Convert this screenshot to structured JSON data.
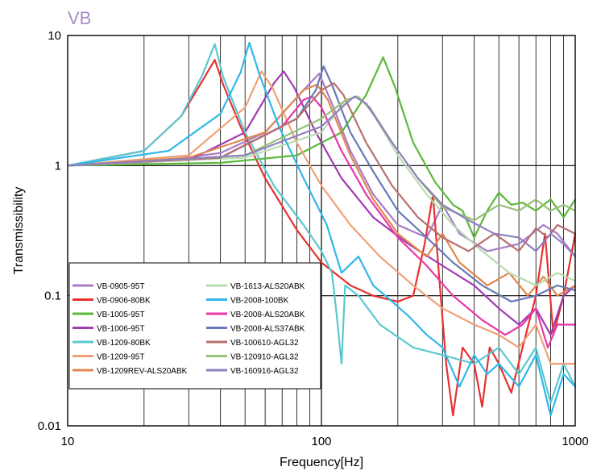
{
  "chart_data": {
    "type": "line",
    "title": "VB",
    "xlabel": "Frequency[Hz]",
    "ylabel": "Transmissibility",
    "x_scale": "log",
    "y_scale": "log",
    "xlim": [
      10,
      1000
    ],
    "ylim": [
      0.01,
      10
    ],
    "x_ticks": [
      "10",
      "100",
      "1000"
    ],
    "y_ticks": [
      "0.01",
      "0.1",
      "1",
      "10"
    ],
    "grid": true,
    "legend_position": "bottom-left",
    "series": [
      {
        "name": "VB-0905-95T",
        "color": "#a87cc8",
        "points": [
          [
            10,
            1
          ],
          [
            20,
            1.05
          ],
          [
            40,
            1.25
          ],
          [
            60,
            1.8
          ],
          [
            85,
            3.8
          ],
          [
            98,
            5.1
          ],
          [
            110,
            3
          ],
          [
            130,
            1.3
          ],
          [
            160,
            0.6
          ],
          [
            200,
            0.35
          ],
          [
            260,
            0.28
          ],
          [
            300,
            0.5
          ],
          [
            350,
            0.3
          ],
          [
            450,
            0.22
          ],
          [
            600,
            0.25
          ],
          [
            750,
            0.35
          ],
          [
            850,
            0.3
          ],
          [
            1000,
            0.2
          ]
        ]
      },
      {
        "name": "VB-0906-80BK",
        "color": "#e83030",
        "points": [
          [
            10,
            1
          ],
          [
            20,
            1.3
          ],
          [
            28,
            2.4
          ],
          [
            34,
            4.5
          ],
          [
            38,
            6.5
          ],
          [
            41,
            4.2
          ],
          [
            48,
            2
          ],
          [
            60,
            0.8
          ],
          [
            80,
            0.32
          ],
          [
            100,
            0.18
          ],
          [
            130,
            0.12
          ],
          [
            160,
            0.1
          ],
          [
            200,
            0.09
          ],
          [
            230,
            0.1
          ],
          [
            255,
            0.25
          ],
          [
            275,
            0.6
          ],
          [
            290,
            0.15
          ],
          [
            310,
            0.03
          ],
          [
            330,
            0.012
          ],
          [
            360,
            0.04
          ],
          [
            400,
            0.03
          ],
          [
            430,
            0.014
          ],
          [
            460,
            0.04
          ],
          [
            500,
            0.03
          ],
          [
            560,
            0.018
          ],
          [
            620,
            0.04
          ],
          [
            700,
            0.1
          ],
          [
            760,
            0.3
          ],
          [
            820,
            0.05
          ],
          [
            900,
            0.1
          ],
          [
            1000,
            0.3
          ]
        ]
      },
      {
        "name": "VB-1005-95T",
        "color": "#5cb83a",
        "points": [
          [
            10,
            1
          ],
          [
            40,
            1.05
          ],
          [
            80,
            1.2
          ],
          [
            120,
            1.8
          ],
          [
            150,
            3.5
          ],
          [
            175,
            6.8
          ],
          [
            195,
            4
          ],
          [
            230,
            1.5
          ],
          [
            280,
            0.75
          ],
          [
            330,
            0.5
          ],
          [
            360,
            0.45
          ],
          [
            400,
            0.28
          ],
          [
            450,
            0.45
          ],
          [
            500,
            0.62
          ],
          [
            560,
            0.5
          ],
          [
            620,
            0.52
          ],
          [
            700,
            0.45
          ],
          [
            800,
            0.55
          ],
          [
            900,
            0.4
          ],
          [
            1000,
            0.55
          ]
        ]
      },
      {
        "name": "VB-1006-95T",
        "color": "#a03cb0",
        "points": [
          [
            10,
            1
          ],
          [
            30,
            1.1
          ],
          [
            50,
            1.8
          ],
          [
            65,
            4.3
          ],
          [
            71,
            5.3
          ],
          [
            78,
            4
          ],
          [
            95,
            1.8
          ],
          [
            120,
            0.8
          ],
          [
            160,
            0.4
          ],
          [
            220,
            0.25
          ],
          [
            300,
            0.17
          ],
          [
            400,
            0.12
          ],
          [
            500,
            0.08
          ],
          [
            600,
            0.06
          ],
          [
            700,
            0.08
          ],
          [
            800,
            0.05
          ],
          [
            900,
            0.1
          ],
          [
            1000,
            0.12
          ]
        ]
      },
      {
        "name": "VB-1209-80BK",
        "color": "#5ac8d0",
        "points": [
          [
            10,
            1
          ],
          [
            20,
            1.3
          ],
          [
            28,
            2.4
          ],
          [
            34,
            5
          ],
          [
            38,
            8.6
          ],
          [
            41,
            4.8
          ],
          [
            50,
            1.8
          ],
          [
            65,
            0.7
          ],
          [
            85,
            0.35
          ],
          [
            100,
            0.22
          ],
          [
            110,
            0.15
          ],
          [
            115,
            0.07
          ],
          [
            120,
            0.03
          ],
          [
            124,
            0.12
          ],
          [
            140,
            0.1
          ],
          [
            170,
            0.06
          ],
          [
            230,
            0.04
          ],
          [
            300,
            0.035
          ],
          [
            400,
            0.03
          ],
          [
            500,
            0.04
          ],
          [
            600,
            0.025
          ],
          [
            700,
            0.04
          ],
          [
            800,
            0.015
          ],
          [
            900,
            0.03
          ],
          [
            1000,
            0.02
          ]
        ]
      },
      {
        "name": "VB-1209-95T",
        "color": "#f0a078",
        "points": [
          [
            10,
            1
          ],
          [
            30,
            1.2
          ],
          [
            50,
            2.8
          ],
          [
            58,
            5.3
          ],
          [
            64,
            4
          ],
          [
            80,
            1.5
          ],
          [
            100,
            0.7
          ],
          [
            130,
            0.35
          ],
          [
            170,
            0.2
          ],
          [
            230,
            0.12
          ],
          [
            300,
            0.08
          ],
          [
            400,
            0.06
          ],
          [
            500,
            0.05
          ],
          [
            600,
            0.04
          ],
          [
            700,
            0.06
          ],
          [
            800,
            0.03
          ],
          [
            1000,
            0.03
          ]
        ]
      },
      {
        "name": "VB-1209REV-ALS20ABK",
        "color": "#e08850",
        "points": [
          [
            10,
            1
          ],
          [
            30,
            1.15
          ],
          [
            60,
            1.8
          ],
          [
            85,
            3.8
          ],
          [
            96,
            4.2
          ],
          [
            106,
            3.2
          ],
          [
            130,
            1.2
          ],
          [
            160,
            0.55
          ],
          [
            200,
            0.3
          ],
          [
            260,
            0.2
          ],
          [
            300,
            0.3
          ],
          [
            350,
            0.18
          ],
          [
            450,
            0.12
          ],
          [
            550,
            0.15
          ],
          [
            650,
            0.1
          ],
          [
            750,
            0.14
          ],
          [
            850,
            0.1
          ],
          [
            1000,
            0.12
          ]
        ]
      },
      {
        "name": "VB-1613-ALS20ABK",
        "color": "#b8dcb0",
        "points": [
          [
            10,
            1
          ],
          [
            50,
            1.15
          ],
          [
            100,
            1.8
          ],
          [
            125,
            3.2
          ],
          [
            140,
            3.4
          ],
          [
            160,
            2.5
          ],
          [
            200,
            1.2
          ],
          [
            260,
            0.6
          ],
          [
            330,
            0.35
          ],
          [
            430,
            0.22
          ],
          [
            550,
            0.15
          ],
          [
            700,
            0.12
          ],
          [
            850,
            0.15
          ],
          [
            1000,
            0.13
          ]
        ]
      },
      {
        "name": "VB-2008-100BK",
        "color": "#30b8e8",
        "points": [
          [
            10,
            1
          ],
          [
            25,
            1.3
          ],
          [
            40,
            2.5
          ],
          [
            48,
            5.2
          ],
          [
            52,
            8.8
          ],
          [
            57,
            5
          ],
          [
            68,
            2
          ],
          [
            85,
            0.8
          ],
          [
            105,
            0.35
          ],
          [
            120,
            0.15
          ],
          [
            140,
            0.2
          ],
          [
            160,
            0.12
          ],
          [
            190,
            0.09
          ],
          [
            220,
            0.07
          ],
          [
            260,
            0.05
          ],
          [
            300,
            0.04
          ],
          [
            350,
            0.02
          ],
          [
            400,
            0.035
          ],
          [
            450,
            0.025
          ],
          [
            500,
            0.03
          ],
          [
            600,
            0.02
          ],
          [
            700,
            0.035
          ],
          [
            800,
            0.012
          ],
          [
            900,
            0.025
          ],
          [
            1000,
            0.02
          ]
        ]
      },
      {
        "name": "VB-2008-ALS20ABK",
        "color": "#e838a8",
        "points": [
          [
            10,
            1
          ],
          [
            40,
            1.15
          ],
          [
            70,
            2
          ],
          [
            85,
            3.2
          ],
          [
            92,
            3.4
          ],
          [
            100,
            2.8
          ],
          [
            120,
            1.3
          ],
          [
            150,
            0.6
          ],
          [
            200,
            0.28
          ],
          [
            260,
            0.17
          ],
          [
            330,
            0.1
          ],
          [
            430,
            0.065
          ],
          [
            530,
            0.05
          ],
          [
            620,
            0.06
          ],
          [
            700,
            0.08
          ],
          [
            780,
            0.04
          ],
          [
            850,
            0.06
          ],
          [
            1000,
            0.06
          ]
        ]
      },
      {
        "name": "VB-2008-ALS37ABK",
        "color": "#6878b8",
        "points": [
          [
            10,
            1
          ],
          [
            40,
            1.15
          ],
          [
            80,
            2.3
          ],
          [
            95,
            3.8
          ],
          [
            102,
            5.8
          ],
          [
            110,
            4.2
          ],
          [
            130,
            1.8
          ],
          [
            160,
            0.9
          ],
          [
            200,
            0.45
          ],
          [
            260,
            0.28
          ],
          [
            330,
            0.18
          ],
          [
            430,
            0.12
          ],
          [
            560,
            0.09
          ],
          [
            700,
            0.1
          ],
          [
            850,
            0.12
          ],
          [
            1000,
            0.11
          ]
        ]
      },
      {
        "name": "VB-100610-AGL32",
        "color": "#b87070",
        "points": [
          [
            10,
            1
          ],
          [
            40,
            1.15
          ],
          [
            80,
            2.3
          ],
          [
            100,
            3.8
          ],
          [
            112,
            4.3
          ],
          [
            122,
            3.5
          ],
          [
            150,
            1.5
          ],
          [
            190,
            0.7
          ],
          [
            240,
            0.4
          ],
          [
            300,
            0.28
          ],
          [
            380,
            0.22
          ],
          [
            480,
            0.3
          ],
          [
            600,
            0.22
          ],
          [
            700,
            0.33
          ],
          [
            780,
            0.28
          ],
          [
            850,
            0.35
          ],
          [
            1000,
            0.3
          ]
        ]
      },
      {
        "name": "VB-120910-AGL32",
        "color": "#98c078",
        "points": [
          [
            10,
            1
          ],
          [
            50,
            1.2
          ],
          [
            100,
            2.3
          ],
          [
            125,
            3.2
          ],
          [
            138,
            3.4
          ],
          [
            155,
            2.8
          ],
          [
            190,
            1.5
          ],
          [
            240,
            0.8
          ],
          [
            300,
            0.48
          ],
          [
            400,
            0.38
          ],
          [
            500,
            0.5
          ],
          [
            600,
            0.45
          ],
          [
            700,
            0.55
          ],
          [
            800,
            0.45
          ],
          [
            900,
            0.5
          ],
          [
            1000,
            0.45
          ]
        ]
      },
      {
        "name": "VB-160916-AGL32",
        "color": "#9080c0",
        "points": [
          [
            10,
            1
          ],
          [
            50,
            1.2
          ],
          [
            100,
            2
          ],
          [
            125,
            3
          ],
          [
            135,
            3.4
          ],
          [
            150,
            3
          ],
          [
            190,
            1.5
          ],
          [
            240,
            0.8
          ],
          [
            300,
            0.5
          ],
          [
            380,
            0.38
          ],
          [
            480,
            0.3
          ],
          [
            600,
            0.28
          ],
          [
            700,
            0.22
          ],
          [
            800,
            0.3
          ],
          [
            900,
            0.25
          ],
          [
            1000,
            0.2
          ]
        ]
      }
    ]
  }
}
